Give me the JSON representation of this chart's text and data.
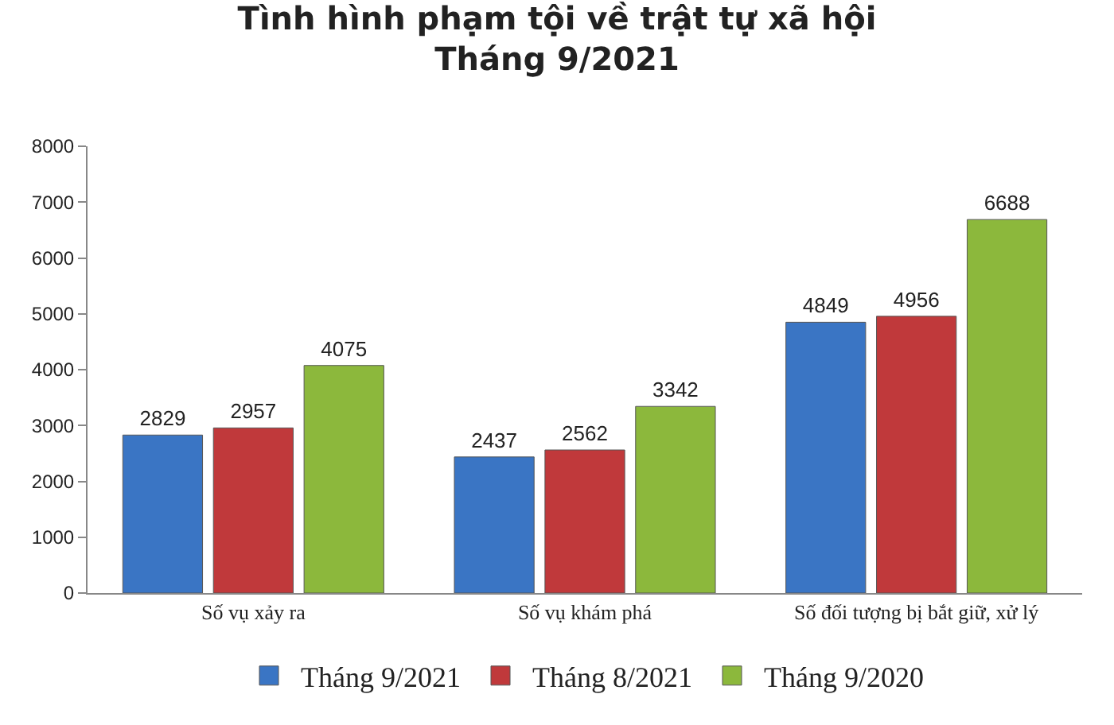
{
  "chart_data": {
    "type": "bar",
    "title": "Tình hình phạm tội về trật tự xã hội\nTháng 9/2021",
    "categories": [
      "Số vụ xảy ra",
      "Số vụ khám phá",
      "Số đối tượng bị bắt giữ, xử lý"
    ],
    "series": [
      {
        "name": "Tháng 9/2021",
        "color": "#3a75c4",
        "values": [
          2829,
          2437,
          4849
        ]
      },
      {
        "name": "Tháng 8/2021",
        "color": "#c0393b",
        "values": [
          2957,
          2562,
          4956
        ]
      },
      {
        "name": "Tháng 9/2020",
        "color": "#8cb83c",
        "values": [
          4075,
          3342,
          6688
        ]
      }
    ],
    "ylim": [
      0,
      8000
    ],
    "yticks": [
      0,
      1000,
      2000,
      3000,
      4000,
      5000,
      6000,
      7000,
      8000
    ],
    "legend": "bottom",
    "data_labels": true
  }
}
